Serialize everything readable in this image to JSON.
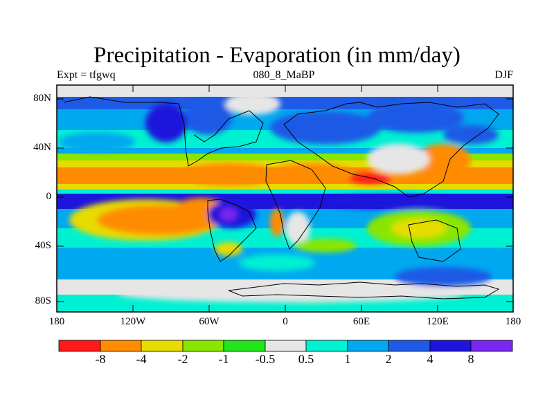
{
  "title": "Precipitation - Evaporation (in mm/day)",
  "left_label": "Expt = tfgwq",
  "center_label": "080_8_MaBP",
  "right_label": "DJF",
  "y_ticks": [
    "80N",
    "40N",
    "0",
    "40S",
    "80S"
  ],
  "x_ticks": [
    "180",
    "120W",
    "60W",
    "0",
    "60E",
    "120E",
    "180"
  ],
  "colorbar": {
    "colors": [
      "#ff1a1a",
      "#ff8c00",
      "#e6dc00",
      "#8ae600",
      "#23e61a",
      "#e6e6e6",
      "#00f0d2",
      "#00a8f0",
      "#1e5ae6",
      "#1e14dc",
      "#7828f0"
    ],
    "labels": [
      "-8",
      "-4",
      "-2",
      "-1",
      "-0.5",
      "0.5",
      "1",
      "2",
      "4",
      "8"
    ]
  }
}
